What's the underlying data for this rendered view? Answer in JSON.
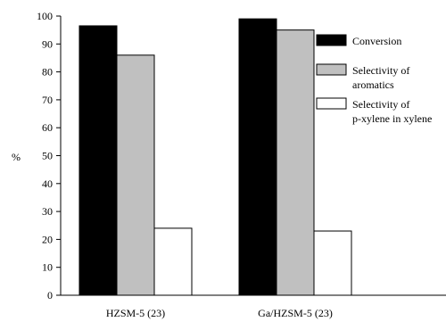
{
  "chart_data": {
    "type": "bar",
    "categories": [
      "HZSM-5 (23)",
      "Ga/HZSM-5 (23)"
    ],
    "series": [
      {
        "name": "Conversion",
        "values": [
          96.5,
          99
        ],
        "color": "#000000"
      },
      {
        "name": "Selectivity of aromatics",
        "name_lines": [
          "Selectivity of",
          "aromatics"
        ],
        "values": [
          86,
          95
        ],
        "color": "#c0c0c0"
      },
      {
        "name": "Selectivity of p-xylene in xylene",
        "name_lines": [
          "Selectivity of",
          "p-xylene in xylene"
        ],
        "values": [
          24,
          23
        ],
        "color": "#ffffff"
      }
    ],
    "ylabel": "%",
    "ylim": [
      0,
      100
    ],
    "yticks": [
      0,
      10,
      20,
      30,
      40,
      50,
      60,
      70,
      80,
      90,
      100
    ],
    "grid": false,
    "legend": "top-right"
  }
}
